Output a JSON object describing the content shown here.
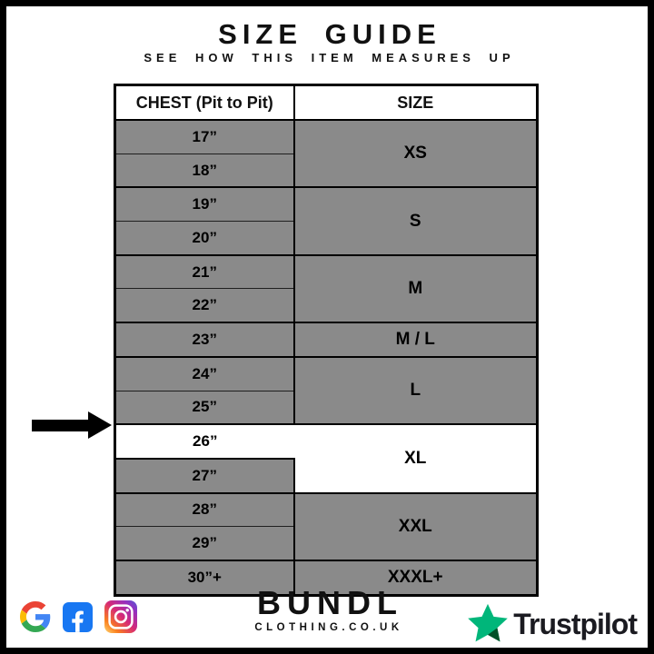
{
  "header": {
    "title": "SIZE GUIDE",
    "subtitle": "SEE HOW THIS ITEM MEASURES UP"
  },
  "table": {
    "columns": [
      "CHEST (Pit to Pit)",
      "SIZE"
    ],
    "highlighted_chest": "26”",
    "groups": [
      {
        "size": "XS",
        "chest": [
          "17”",
          "18”"
        ],
        "highlight": false
      },
      {
        "size": "S",
        "chest": [
          "19”",
          "20”"
        ],
        "highlight": false
      },
      {
        "size": "M",
        "chest": [
          "21”",
          "22”"
        ],
        "highlight": false
      },
      {
        "size": "M / L",
        "chest": [
          "23”"
        ],
        "highlight": false
      },
      {
        "size": "L",
        "chest": [
          "24”",
          "25”"
        ],
        "highlight": false
      },
      {
        "size": "XL",
        "chest": [
          "26”",
          "27”"
        ],
        "highlight": true
      },
      {
        "size": "XXL",
        "chest": [
          "28”",
          "29”"
        ],
        "highlight": false
      },
      {
        "size": "XXXL+",
        "chest": [
          "30”+"
        ],
        "highlight": false
      }
    ]
  },
  "annotations": {
    "arrow_target": "26”"
  },
  "footer": {
    "social_icons": [
      "google-icon",
      "facebook-icon",
      "instagram-icon"
    ],
    "brand": {
      "name": "BUNDL",
      "domain": "CLOTHING.CO.UK"
    },
    "trustpilot_label": "Trustpilot"
  },
  "colors": {
    "row_gray": "#8A8A8A",
    "highlight_white": "#FFFFFF",
    "line_black": "#000000",
    "text_black": "#111111",
    "trustpilot_green": "#00B67A",
    "trustpilot_dark": "#005128",
    "facebook_blue": "#1877F2",
    "google_blue": "#4285F4",
    "google_red": "#EA4335",
    "google_yellow": "#FBBC05",
    "google_green": "#34A853",
    "instagram_gradient": [
      "#FEDA75",
      "#FA7E1E",
      "#D62976",
      "#962FBF",
      "#4F5BD5"
    ]
  }
}
